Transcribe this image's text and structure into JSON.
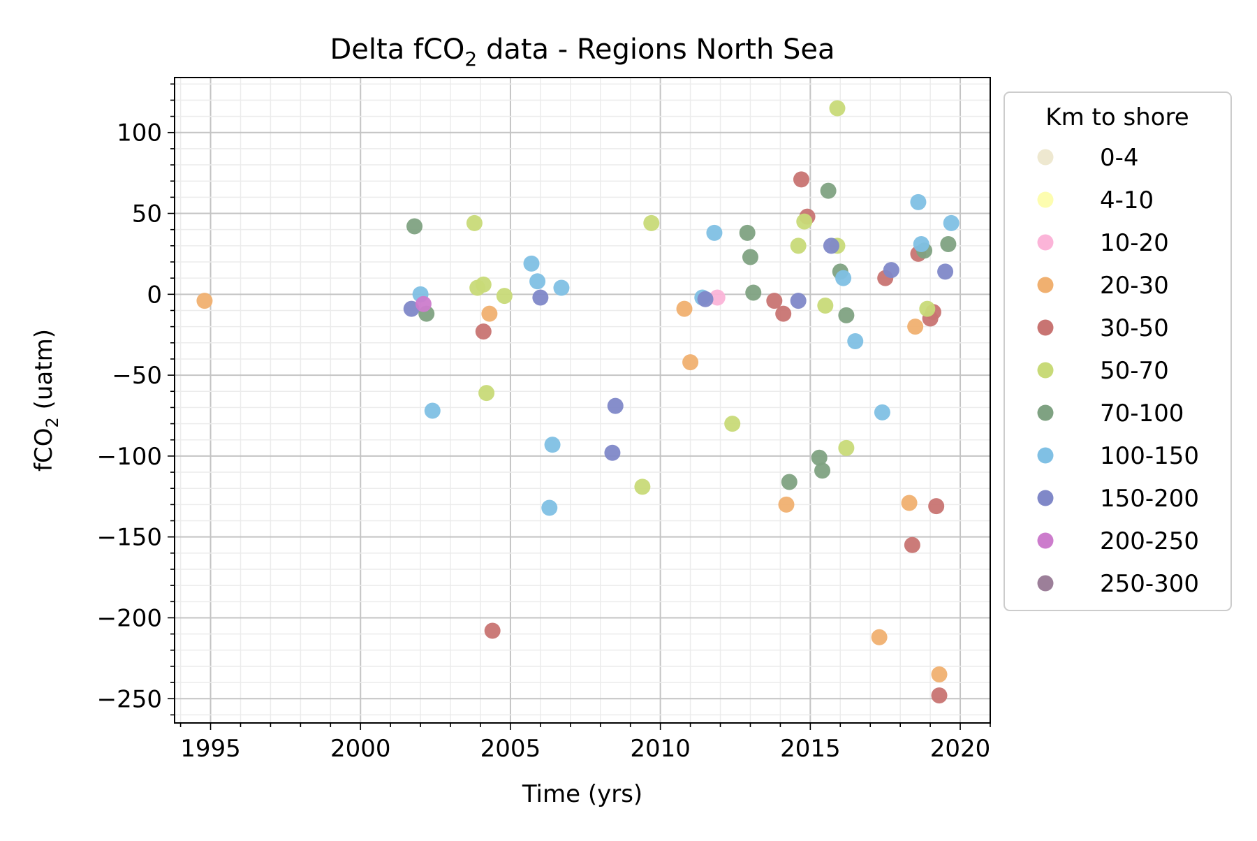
{
  "chart_data": {
    "type": "scatter",
    "title": "Delta fCO",
    "title_sub": "2",
    "title_suffix": " data - Regions North Sea",
    "xlabel": "Time (yrs)",
    "ylabel": "fCO",
    "ylabel_sub": "2",
    "ylabel_suffix": " (uatm)",
    "xlim": [
      1993.8,
      2021.0
    ],
    "ylim": [
      -265,
      134
    ],
    "x_ticks": [
      1995,
      2000,
      2005,
      2010,
      2015,
      2020
    ],
    "x_tick_labels": [
      "1995",
      "2000",
      "2005",
      "2010",
      "2015",
      "2020"
    ],
    "y_ticks": [
      100,
      50,
      0,
      -50,
      -100,
      -150,
      -200,
      -250
    ],
    "y_tick_labels": [
      "100",
      "50",
      "0",
      "−50",
      "−100",
      "−150",
      "−200",
      "−250"
    ],
    "grid": true,
    "legend_title": "Km to shore",
    "legend_position": "outside-right",
    "series": [
      {
        "name": "0-4",
        "color": "#eee8d0",
        "points": []
      },
      {
        "name": "4-10",
        "color": "#fdfdb0",
        "points": []
      },
      {
        "name": "10-20",
        "color": "#fbb4d8",
        "points": [
          [
            2011.9,
            -2
          ]
        ]
      },
      {
        "name": "20-30",
        "color": "#f0b070",
        "points": [
          [
            1994.8,
            -4
          ],
          [
            2004.3,
            -12
          ],
          [
            2010.8,
            -9
          ],
          [
            2011.0,
            -42
          ],
          [
            2014.2,
            -130
          ],
          [
            2017.3,
            -212
          ],
          [
            2018.3,
            -129
          ],
          [
            2018.5,
            -20
          ],
          [
            2019.3,
            -235
          ]
        ]
      },
      {
        "name": "30-50",
        "color": "#c87472",
        "points": [
          [
            2004.1,
            -23
          ],
          [
            2004.4,
            -208
          ],
          [
            2013.8,
            -4
          ],
          [
            2014.1,
            -12
          ],
          [
            2014.7,
            71
          ],
          [
            2014.9,
            48
          ],
          [
            2017.5,
            10
          ],
          [
            2018.4,
            -155
          ],
          [
            2018.6,
            25
          ],
          [
            2019.0,
            -15
          ],
          [
            2019.1,
            -11
          ],
          [
            2019.2,
            -131
          ],
          [
            2019.3,
            -248
          ]
        ]
      },
      {
        "name": "50-70",
        "color": "#c8da78",
        "points": [
          [
            2003.8,
            44
          ],
          [
            2003.9,
            4
          ],
          [
            2004.1,
            6
          ],
          [
            2004.2,
            -61
          ],
          [
            2004.8,
            -1
          ],
          [
            2009.4,
            -119
          ],
          [
            2009.7,
            44
          ],
          [
            2012.4,
            -80
          ],
          [
            2014.6,
            30
          ],
          [
            2014.8,
            45
          ],
          [
            2015.5,
            -7
          ],
          [
            2015.9,
            30
          ],
          [
            2015.9,
            115
          ],
          [
            2016.2,
            -95
          ],
          [
            2018.9,
            -9
          ]
        ]
      },
      {
        "name": "70-100",
        "color": "#7fa282",
        "points": [
          [
            2001.8,
            42
          ],
          [
            2002.2,
            -12
          ],
          [
            2012.9,
            38
          ],
          [
            2013.0,
            23
          ],
          [
            2013.1,
            1
          ],
          [
            2014.3,
            -116
          ],
          [
            2015.3,
            -101
          ],
          [
            2015.4,
            -109
          ],
          [
            2015.6,
            64
          ],
          [
            2016.0,
            14
          ],
          [
            2016.2,
            -13
          ],
          [
            2018.8,
            27
          ],
          [
            2019.6,
            31
          ]
        ]
      },
      {
        "name": "100-150",
        "color": "#80c0e4",
        "points": [
          [
            2002.0,
            0
          ],
          [
            2002.4,
            -72
          ],
          [
            2005.7,
            19
          ],
          [
            2005.9,
            8
          ],
          [
            2006.3,
            -132
          ],
          [
            2006.4,
            -93
          ],
          [
            2006.7,
            4
          ],
          [
            2011.4,
            -2
          ],
          [
            2011.8,
            38
          ],
          [
            2016.1,
            10
          ],
          [
            2016.5,
            -29
          ],
          [
            2017.4,
            -73
          ],
          [
            2018.6,
            57
          ],
          [
            2018.7,
            31
          ],
          [
            2019.7,
            44
          ]
        ]
      },
      {
        "name": "150-200",
        "color": "#8088c8",
        "points": [
          [
            2001.7,
            -9
          ],
          [
            2006.0,
            -2
          ],
          [
            2008.4,
            -98
          ],
          [
            2008.5,
            -69
          ],
          [
            2011.5,
            -3
          ],
          [
            2014.6,
            -4
          ],
          [
            2015.7,
            30
          ],
          [
            2017.7,
            15
          ],
          [
            2019.5,
            14
          ]
        ]
      },
      {
        "name": "200-250",
        "color": "#cc7ccc",
        "points": [
          [
            2002.1,
            -6
          ]
        ]
      },
      {
        "name": "250-300",
        "color": "#9c7f99",
        "points": []
      }
    ]
  }
}
